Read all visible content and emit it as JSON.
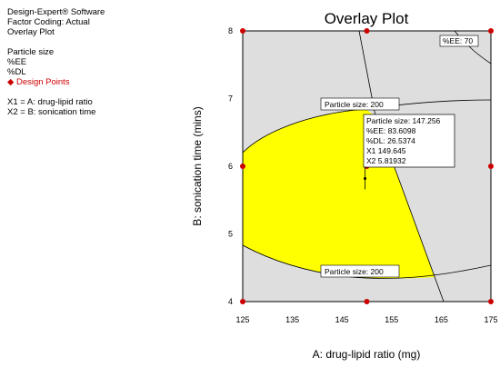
{
  "info": {
    "software": "Design-Expert® Software",
    "coding": "Factor Coding: Actual",
    "plot_type": "Overlay Plot",
    "responses": [
      "Particle size",
      "%EE",
      "%DL"
    ],
    "design_points": "Design Points",
    "factors": [
      "X1 = A: drug-lipid ratio",
      "X2 = B: sonication time"
    ]
  },
  "chart_data": {
    "type": "scatter",
    "title": "Overlay Plot",
    "xlabel": "A: drug-lipid ratio (mg)",
    "ylabel": "B: sonication time (mins)",
    "xlim": [
      125,
      175
    ],
    "ylim": [
      4,
      8
    ],
    "x_ticks": [
      "125",
      "135",
      "145",
      "155",
      "165",
      "175"
    ],
    "y_ticks": [
      "4",
      "5",
      "6",
      "7",
      "8"
    ],
    "design_points": [
      {
        "x": 125,
        "y": 4
      },
      {
        "x": 150,
        "y": 4
      },
      {
        "x": 175,
        "y": 4
      },
      {
        "x": 125,
        "y": 6
      },
      {
        "x": 150,
        "y": 6
      },
      {
        "x": 175,
        "y": 6
      },
      {
        "x": 125,
        "y": 8
      },
      {
        "x": 150,
        "y": 8
      },
      {
        "x": 175,
        "y": 8
      }
    ],
    "contour_labels": [
      "Particle size: 200",
      "Particle size: 200",
      "%EE: 70"
    ],
    "flag": {
      "lines": [
        "Particle size:  147.256",
        "%EE:  83.6098",
        "%DL:  26.5374",
        "X1  149.645",
        "X2  5.81932"
      ],
      "x": 149.645,
      "y": 5.81932
    },
    "colors": {
      "feasible": "#ffff00",
      "infeasible": "#dedede",
      "point": "#cc0000"
    }
  }
}
